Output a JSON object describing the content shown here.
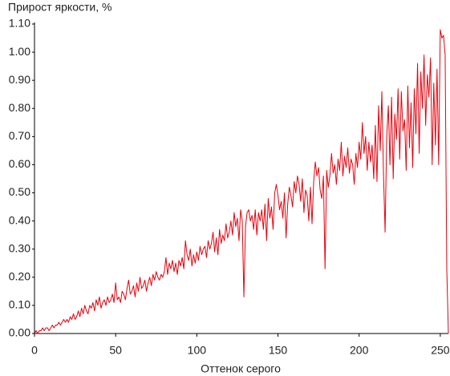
{
  "chart_data": {
    "type": "line",
    "title": "Прирост яркости, %",
    "x_label": "Оттенок серого",
    "color": "#e8000b",
    "xlim": [
      0,
      255
    ],
    "xticks": [
      0,
      50,
      100,
      150,
      200,
      250
    ],
    "ylim": [
      0,
      1.1
    ],
    "yticks": [
      {
        "value": 0,
        "label": "0.00"
      },
      {
        "value": 0.1,
        "label": "0.10"
      },
      {
        "value": 0.2,
        "label": "0.20"
      },
      {
        "value": 0.3,
        "label": "0.30"
      },
      {
        "value": 0.4,
        "label": "0.40"
      },
      {
        "value": 0.5,
        "label": "0.50"
      },
      {
        "value": 0.6,
        "label": "0.60"
      },
      {
        "value": 0.7,
        "label": "0.70"
      },
      {
        "value": 0.8,
        "label": "0.80"
      },
      {
        "value": 0.9,
        "label": "0.90"
      },
      {
        "value": 1.0,
        "label": "1.00"
      },
      {
        "value": 1.1,
        "label": "1.10"
      }
    ],
    "x": [
      0,
      1,
      2,
      3,
      4,
      5,
      6,
      7,
      8,
      9,
      10,
      11,
      12,
      13,
      14,
      15,
      16,
      17,
      18,
      19,
      20,
      21,
      22,
      23,
      24,
      25,
      26,
      27,
      28,
      29,
      30,
      31,
      32,
      33,
      34,
      35,
      36,
      37,
      38,
      39,
      40,
      41,
      42,
      43,
      44,
      45,
      46,
      47,
      48,
      49,
      50,
      51,
      52,
      53,
      54,
      55,
      56,
      57,
      58,
      59,
      60,
      61,
      62,
      63,
      64,
      65,
      66,
      67,
      68,
      69,
      70,
      71,
      72,
      73,
      74,
      75,
      76,
      77,
      78,
      79,
      80,
      81,
      82,
      83,
      84,
      85,
      86,
      87,
      88,
      89,
      90,
      91,
      92,
      93,
      94,
      95,
      96,
      97,
      98,
      99,
      100,
      101,
      102,
      103,
      104,
      105,
      106,
      107,
      108,
      109,
      110,
      111,
      112,
      113,
      114,
      115,
      116,
      117,
      118,
      119,
      120,
      121,
      122,
      123,
      124,
      125,
      126,
      127,
      128,
      129,
      130,
      131,
      132,
      133,
      134,
      135,
      136,
      137,
      138,
      139,
      140,
      141,
      142,
      143,
      144,
      145,
      146,
      147,
      148,
      149,
      150,
      151,
      152,
      153,
      154,
      155,
      156,
      157,
      158,
      159,
      160,
      161,
      162,
      163,
      164,
      165,
      166,
      167,
      168,
      169,
      170,
      171,
      172,
      173,
      174,
      175,
      176,
      177,
      178,
      179,
      180,
      181,
      182,
      183,
      184,
      185,
      186,
      187,
      188,
      189,
      190,
      191,
      192,
      193,
      194,
      195,
      196,
      197,
      198,
      199,
      200,
      201,
      202,
      203,
      204,
      205,
      206,
      207,
      208,
      209,
      210,
      211,
      212,
      213,
      214,
      215,
      216,
      217,
      218,
      219,
      220,
      221,
      222,
      223,
      224,
      225,
      226,
      227,
      228,
      229,
      230,
      231,
      232,
      233,
      234,
      235,
      236,
      237,
      238,
      239,
      240,
      241,
      242,
      243,
      244,
      245,
      246,
      247,
      248,
      249,
      250,
      251,
      252,
      253,
      254,
      255
    ],
    "values": [
      0,
      0.01,
      0,
      0.01,
      0.01,
      0.02,
      0.01,
      0.02,
      0.02,
      0.01,
      0.02,
      0.03,
      0.02,
      0.03,
      0.03,
      0.04,
      0.03,
      0.04,
      0.05,
      0.04,
      0.05,
      0.04,
      0.06,
      0.05,
      0.07,
      0.05,
      0.06,
      0.08,
      0.06,
      0.09,
      0.07,
      0.1,
      0.08,
      0.07,
      0.1,
      0.09,
      0.11,
      0.08,
      0.12,
      0.1,
      0.13,
      0.09,
      0.11,
      0.12,
      0.1,
      0.13,
      0.11,
      0.12,
      0.14,
      0.11,
      0.18,
      0.12,
      0.13,
      0.11,
      0.15,
      0.14,
      0.12,
      0.16,
      0.19,
      0.14,
      0.15,
      0.17,
      0.13,
      0.18,
      0.15,
      0.2,
      0.16,
      0.17,
      0.19,
      0.15,
      0.18,
      0.2,
      0.17,
      0.21,
      0.19,
      0.22,
      0.2,
      0.19,
      0.21,
      0.2,
      0.22,
      0.27,
      0.21,
      0.25,
      0.23,
      0.26,
      0.22,
      0.25,
      0.21,
      0.26,
      0.24,
      0.27,
      0.23,
      0.33,
      0.28,
      0.26,
      0.3,
      0.24,
      0.28,
      0.25,
      0.29,
      0.26,
      0.31,
      0.28,
      0.3,
      0.31,
      0.27,
      0.33,
      0.3,
      0.32,
      0.36,
      0.29,
      0.34,
      0.28,
      0.37,
      0.32,
      0.35,
      0.33,
      0.39,
      0.34,
      0.36,
      0.4,
      0.35,
      0.43,
      0.38,
      0.41,
      0.33,
      0.44,
      0.4,
      0.13,
      0.38,
      0.43,
      0.44,
      0.4,
      0.42,
      0.37,
      0.44,
      0.35,
      0.43,
      0.4,
      0.44,
      0.37,
      0.46,
      0.33,
      0.48,
      0.41,
      0.45,
      0.37,
      0.5,
      0.53,
      0.49,
      0.44,
      0.47,
      0.41,
      0.5,
      0.34,
      0.46,
      0.52,
      0.49,
      0.45,
      0.54,
      0.5,
      0.56,
      0.53,
      0.47,
      0.55,
      0.43,
      0.51,
      0.49,
      0.4,
      0.52,
      0.39,
      0.54,
      0.61,
      0.56,
      0.59,
      0.51,
      0.48,
      0.56,
      0.23,
      0.58,
      0.52,
      0.56,
      0.64,
      0.57,
      0.6,
      0.53,
      0.62,
      0.58,
      0.68,
      0.56,
      0.63,
      0.59,
      0.66,
      0.57,
      0.62,
      0.6,
      0.53,
      0.64,
      0.59,
      0.68,
      0.62,
      0.75,
      0.64,
      0.7,
      0.58,
      0.68,
      0.61,
      0.67,
      0.55,
      0.74,
      0.54,
      0.81,
      0.65,
      0.86,
      0.57,
      0.36,
      0.7,
      0.81,
      0.6,
      0.84,
      0.55,
      0.78,
      0.69,
      0.87,
      0.62,
      0.86,
      0.72,
      0.76,
      0.58,
      0.88,
      0.66,
      0.82,
      0.59,
      0.87,
      0.71,
      0.96,
      0.64,
      0.93,
      0.8,
      0.99,
      0.74,
      0.92,
      0.84,
      0.98,
      0.6,
      0.89,
      0.67,
      0.94,
      0.6,
      1.08,
      1.05,
      1.06,
      0.99,
      0.23,
      0
    ]
  }
}
